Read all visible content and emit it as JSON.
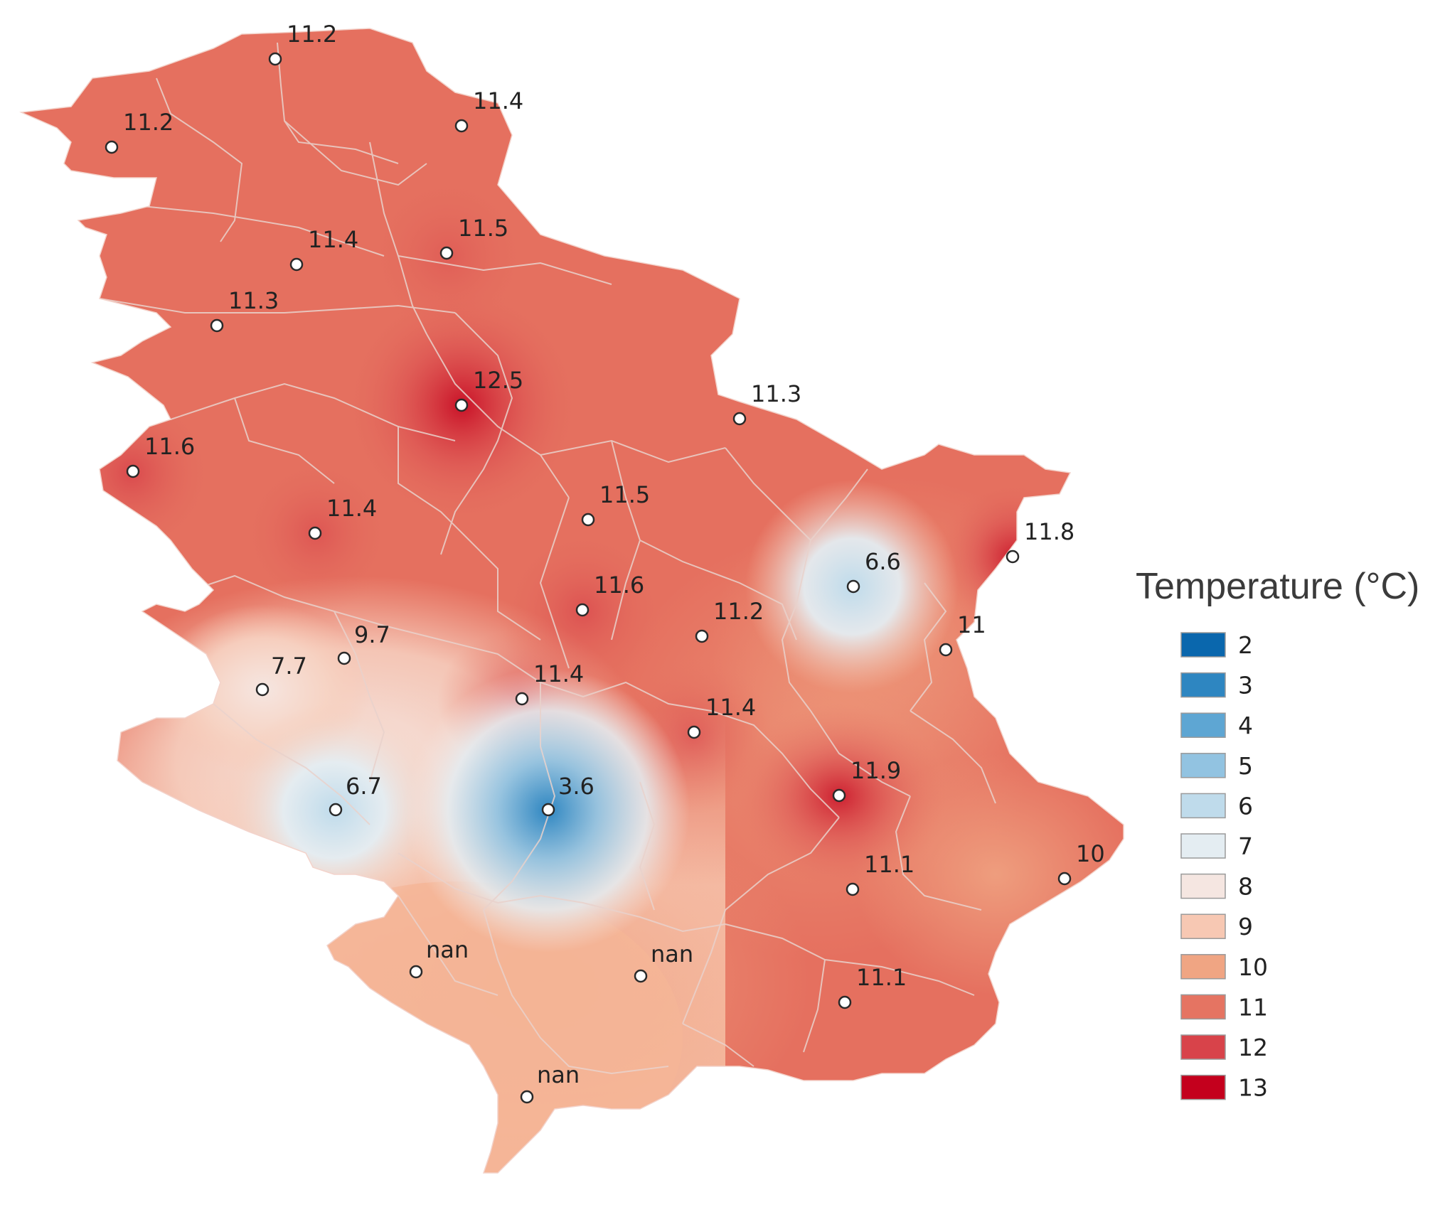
{
  "legend": {
    "title": "Temperature (°C)",
    "items": [
      {
        "value": "2",
        "color": "#0a67ad"
      },
      {
        "value": "3",
        "color": "#2e86c1"
      },
      {
        "value": "4",
        "color": "#5ea6d3"
      },
      {
        "value": "5",
        "color": "#92c3e1"
      },
      {
        "value": "6",
        "color": "#bfdbeb"
      },
      {
        "value": "7",
        "color": "#e4edf2"
      },
      {
        "value": "8",
        "color": "#f5e6e1"
      },
      {
        "value": "9",
        "color": "#f7c8b3"
      },
      {
        "value": "10",
        "color": "#f0a583"
      },
      {
        "value": "11",
        "color": "#e57462"
      },
      {
        "value": "12",
        "color": "#d8434a"
      },
      {
        "value": "13",
        "color": "#c4001d"
      }
    ]
  },
  "stations": [
    {
      "label": "11.2",
      "value": 11.2
    },
    {
      "label": "11.2",
      "value": 11.2
    },
    {
      "label": "11.4",
      "value": 11.4
    },
    {
      "label": "11.4",
      "value": 11.4
    },
    {
      "label": "11.5",
      "value": 11.5
    },
    {
      "label": "11.3",
      "value": 11.3
    },
    {
      "label": "12.5",
      "value": 12.5
    },
    {
      "label": "11.3",
      "value": 11.3
    },
    {
      "label": "11.6",
      "value": 11.6
    },
    {
      "label": "11.4",
      "value": 11.4
    },
    {
      "label": "11.5",
      "value": 11.5
    },
    {
      "label": "11.8",
      "value": 11.8
    },
    {
      "label": "6.6",
      "value": 6.6
    },
    {
      "label": "11.6",
      "value": 11.6
    },
    {
      "label": "11.2",
      "value": 11.2
    },
    {
      "label": "11",
      "value": 11
    },
    {
      "label": "9.7",
      "value": 9.7
    },
    {
      "label": "7.7",
      "value": 7.7
    },
    {
      "label": "11.4",
      "value": 11.4
    },
    {
      "label": "11.4",
      "value": 11.4
    },
    {
      "label": "11.9",
      "value": 11.9
    },
    {
      "label": "6.7",
      "value": 6.7
    },
    {
      "label": "3.6",
      "value": 3.6
    },
    {
      "label": "11.1",
      "value": 11.1
    },
    {
      "label": "10",
      "value": 10
    },
    {
      "label": "nan",
      "value": null
    },
    {
      "label": "nan",
      "value": null
    },
    {
      "label": "11.1",
      "value": 11.1
    },
    {
      "label": "nan",
      "value": null
    }
  ]
}
